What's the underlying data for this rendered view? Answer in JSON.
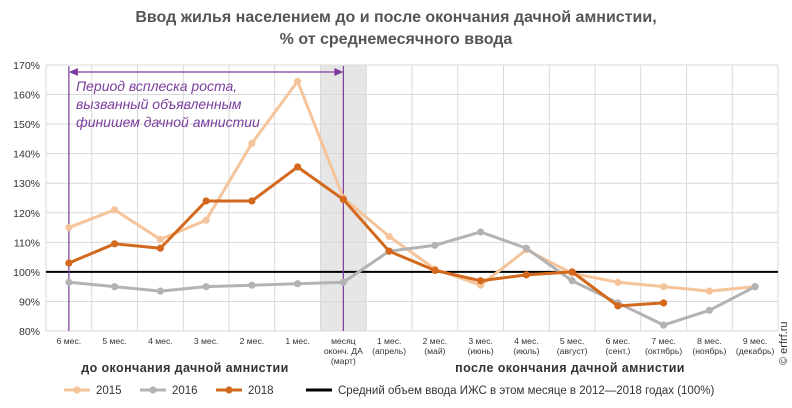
{
  "chart_data": {
    "type": "line",
    "title": "Ввод жилья населением до и после окончания дачной амнистии,",
    "subtitle": "% от среднемесячного ввода",
    "categories": [
      [
        "6 мес."
      ],
      [
        "5 мес."
      ],
      [
        "4 мес."
      ],
      [
        "3 мес."
      ],
      [
        "2 мес."
      ],
      [
        "1 мес."
      ],
      [
        "месяц",
        "оконч. ДА",
        "(март)"
      ],
      [
        "1 мес.",
        "(апрель)"
      ],
      [
        "2 мес.",
        "(май)"
      ],
      [
        "3 мес.",
        "(июнь)"
      ],
      [
        "4 мес.",
        "(июль)"
      ],
      [
        "5 мес.",
        "(август)"
      ],
      [
        "6 мес.",
        "(сент.)"
      ],
      [
        "7 мес.",
        "(октябрь)"
      ],
      [
        "8 мес.",
        "(ноябрь)"
      ],
      [
        "9 мес.",
        "(декабрь)"
      ]
    ],
    "y_ticks": [
      "80%",
      "90%",
      "100%",
      "110%",
      "120%",
      "130%",
      "140%",
      "150%",
      "160%",
      "170%"
    ],
    "ylim": [
      80,
      170
    ],
    "series": [
      {
        "name": "2015",
        "color": "#f5c49b",
        "values": [
          115,
          121,
          111,
          117.5,
          143.5,
          164.5,
          125,
          112,
          101,
          95.5,
          107.5,
          99.5,
          96.5,
          95,
          93.5,
          95
        ]
      },
      {
        "name": "2016",
        "color": "#b3b3b3",
        "values": [
          96.5,
          95,
          93.5,
          95,
          95.5,
          96,
          96.5,
          107,
          109,
          113.5,
          108,
          97,
          89.5,
          82,
          87,
          95
        ]
      },
      {
        "name": "2018",
        "color": "#d2691e",
        "values": [
          103,
          109.5,
          108,
          124,
          124,
          135.5,
          124.5,
          107,
          100.5,
          97,
          99,
          100,
          88.5,
          89.5,
          null,
          null
        ]
      }
    ],
    "reference_line": {
      "value": 100,
      "color": "#000000",
      "label": "Средний объем ввода ИЖС в этом месяце в 2012—2018 годах (100%)"
    },
    "highlight_category": 6,
    "bracket": {
      "from": 0,
      "to": 6,
      "color": "#7b3d9e"
    },
    "annotation": [
      "Период всплеска роста,",
      "вызванный объявленным",
      "финишем дачной амнистии"
    ],
    "phase_labels": {
      "before": "до окончания дачной амнистии",
      "after": "после окончания дачной амнистии"
    },
    "grid": true,
    "legend_position": "bottom"
  },
  "credit": "© erfrf.ru"
}
